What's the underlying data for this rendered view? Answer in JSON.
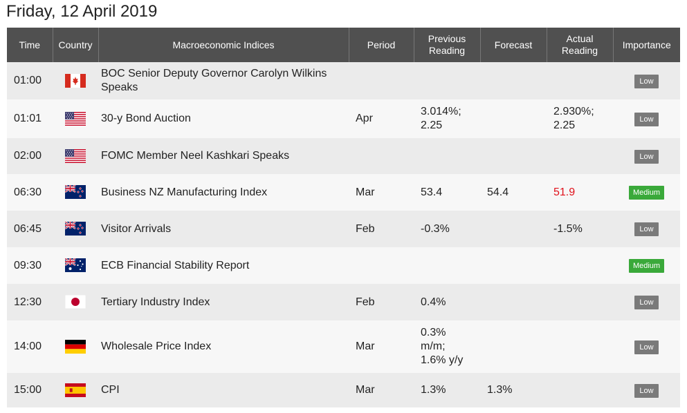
{
  "title": "Friday, 12 April 2019",
  "headers": {
    "time": "Time",
    "country": "Country",
    "event": "Macroeconomic Indices",
    "period": "Period",
    "previous": "Previous Reading",
    "forecast": "Forecast",
    "actual": "Actual Reading",
    "importance": "Importance"
  },
  "colors": {
    "header_bg": "#505050",
    "row_odd": "#ebebeb",
    "row_even": "#f7f7f7",
    "low_badge": "#7a7a7a",
    "medium_badge": "#3aa93a",
    "negative_value": "#e0101a"
  },
  "rows": [
    {
      "time": "01:00",
      "flag": "canada-flag-icon",
      "event": "BOC Senior Deputy Governor Carolyn Wilkins Speaks",
      "period": "",
      "previous": "",
      "forecast": "",
      "actual": "",
      "importance": "Low"
    },
    {
      "time": "01:01",
      "flag": "usa-flag-icon",
      "event": "30-y Bond Auction",
      "period": "Apr",
      "previous": "3.014%; 2.25",
      "forecast": "",
      "actual": "2.930%; 2.25",
      "importance": "Low"
    },
    {
      "time": "02:00",
      "flag": "usa-flag-icon",
      "event": "FOMC Member Neel Kashkari Speaks",
      "period": "",
      "previous": "",
      "forecast": "",
      "actual": "",
      "importance": "Low"
    },
    {
      "time": "06:30",
      "flag": "new-zealand-flag-icon",
      "event": "Business NZ Manufacturing Index",
      "period": "Mar",
      "previous": "53.4",
      "forecast": "54.4",
      "actual": "51.9",
      "actual_negative": true,
      "importance": "Medium"
    },
    {
      "time": "06:45",
      "flag": "new-zealand-flag-icon",
      "event": "Visitor Arrivals",
      "period": "Feb",
      "previous": "-0.3%",
      "forecast": "",
      "actual": "-1.5%",
      "importance": "Low"
    },
    {
      "time": "09:30",
      "flag": "australia-flag-icon",
      "event": "ECB Financial Stability Report",
      "period": "",
      "previous": "",
      "forecast": "",
      "actual": "",
      "importance": "Medium"
    },
    {
      "time": "12:30",
      "flag": "japan-flag-icon",
      "event": "Tertiary Industry Index",
      "period": "Feb",
      "previous": "0.4%",
      "forecast": "",
      "actual": "",
      "importance": "Low"
    },
    {
      "time": "14:00",
      "flag": "germany-flag-icon",
      "event": "Wholesale Price Index",
      "period": "Mar",
      "previous": "0.3% m/m; 1.6% y/y",
      "forecast": "",
      "actual": "",
      "importance": "Low"
    },
    {
      "time": "15:00",
      "flag": "spain-flag-icon",
      "event": "CPI",
      "period": "Mar",
      "previous": "1.3%",
      "forecast": "1.3%",
      "actual": "",
      "importance": "Low"
    }
  ]
}
